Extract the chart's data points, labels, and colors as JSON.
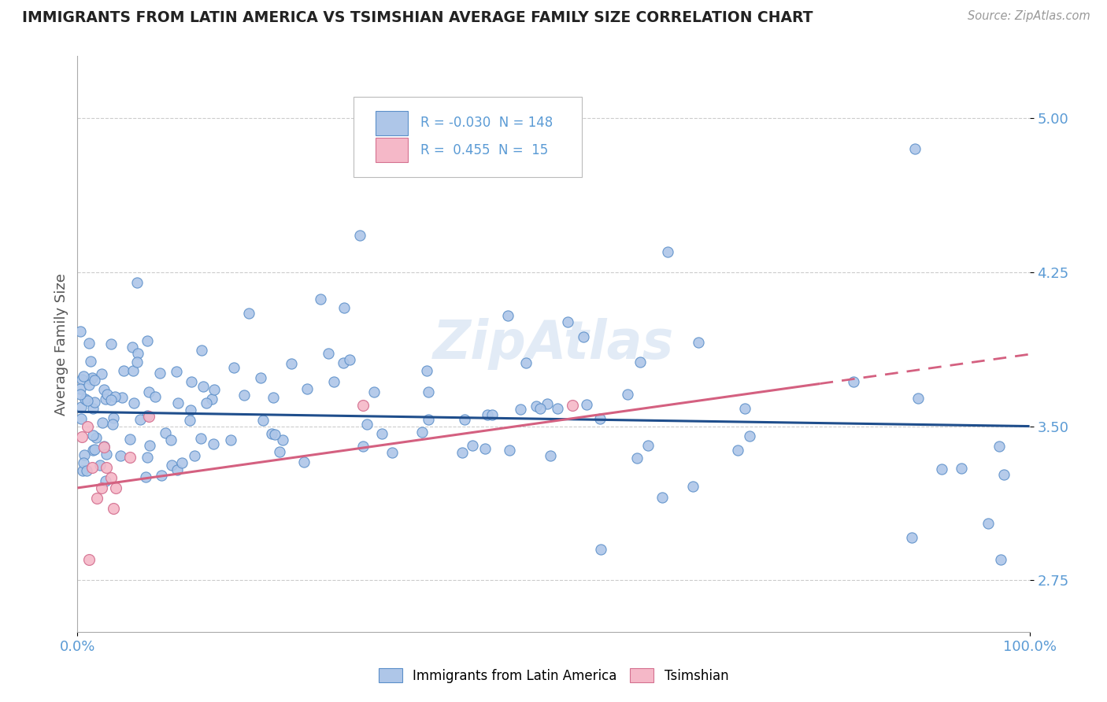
{
  "title": "IMMIGRANTS FROM LATIN AMERICA VS TSIMSHIAN AVERAGE FAMILY SIZE CORRELATION CHART",
  "source": "Source: ZipAtlas.com",
  "ylabel": "Average Family Size",
  "xlim": [
    0.0,
    100.0
  ],
  "ylim": [
    2.5,
    5.3
  ],
  "yticks": [
    2.75,
    3.5,
    4.25,
    5.0
  ],
  "xticklabels": [
    "0.0%",
    "100.0%"
  ],
  "r_blue": -0.03,
  "n_blue": 148,
  "r_pink": 0.455,
  "n_pink": 15,
  "blue_color": "#aec6e8",
  "blue_edge": "#5b8fc9",
  "pink_color": "#f5b8c8",
  "pink_edge": "#d47090",
  "blue_line_color": "#1f4e8c",
  "pink_line_color": "#d46080",
  "axis_color": "#5b9bd5",
  "grid_color": "#cccccc",
  "watermark": "ZipAtlas",
  "watermark_color": "#d0dff0"
}
